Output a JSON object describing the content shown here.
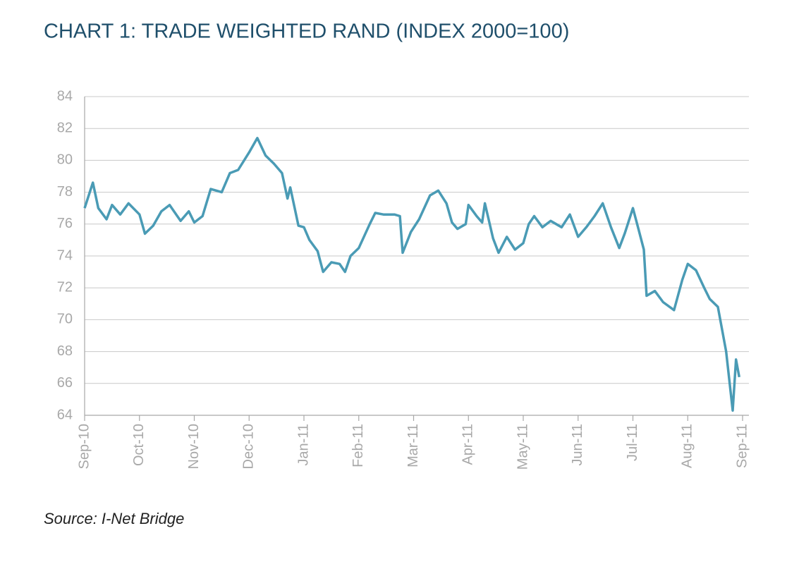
{
  "chart_data": {
    "type": "line",
    "title": "CHART 1: TRADE WEIGHTED RAND (INDEX 2000=100)",
    "source": "Source: I-Net Bridge",
    "color": "#4a9bb5",
    "grid": true,
    "x": [
      0,
      0.15,
      0.25,
      0.4,
      0.5,
      0.65,
      0.8,
      1.0,
      1.1,
      1.25,
      1.4,
      1.55,
      1.75,
      1.9,
      2.0,
      2.15,
      2.3,
      2.5,
      2.65,
      2.8,
      3.0,
      3.15,
      3.3,
      3.45,
      3.6,
      3.7,
      3.75,
      3.9,
      4.0,
      4.1,
      4.25,
      4.35,
      4.5,
      4.65,
      4.75,
      4.85,
      5.0,
      5.2,
      5.3,
      5.45,
      5.65,
      5.75,
      5.8,
      5.95,
      6.1,
      6.3,
      6.45,
      6.6,
      6.7,
      6.8,
      6.95,
      7.0,
      7.15,
      7.25,
      7.3,
      7.45,
      7.55,
      7.7,
      7.85,
      8.0,
      8.1,
      8.2,
      8.35,
      8.5,
      8.7,
      8.85,
      9.0,
      9.15,
      9.3,
      9.45,
      9.6,
      9.75,
      9.85,
      10.0,
      10.1,
      10.2,
      10.25,
      10.4,
      10.55,
      10.75,
      10.9,
      11.0,
      11.15,
      11.3,
      11.4,
      11.55,
      11.7,
      11.82,
      11.88,
      11.94
    ],
    "values": [
      77.0,
      78.6,
      77.0,
      76.3,
      77.2,
      76.6,
      77.3,
      76.6,
      75.4,
      75.9,
      76.8,
      77.2,
      76.2,
      76.8,
      76.1,
      76.5,
      78.2,
      78.0,
      79.2,
      79.4,
      80.5,
      81.4,
      80.3,
      79.8,
      79.2,
      77.6,
      78.3,
      75.9,
      75.8,
      75.0,
      74.3,
      73.0,
      73.6,
      73.5,
      73.0,
      74.0,
      74.5,
      76.0,
      76.7,
      76.6,
      76.6,
      76.5,
      74.2,
      75.5,
      76.3,
      77.8,
      78.1,
      77.3,
      76.1,
      75.7,
      76.0,
      77.2,
      76.5,
      76.1,
      77.3,
      75.1,
      74.2,
      75.2,
      74.4,
      74.8,
      76.0,
      76.5,
      75.8,
      76.2,
      75.8,
      76.6,
      75.2,
      75.8,
      76.5,
      77.3,
      75.8,
      74.5,
      75.4,
      77.0,
      75.7,
      74.4,
      71.5,
      71.8,
      71.1,
      70.6,
      72.5,
      73.5,
      73.1,
      72.0,
      71.3,
      70.8,
      68.0,
      64.3,
      67.5,
      66.4
    ],
    "xlim": [
      0,
      12
    ],
    "xticks": [
      {
        "value": 0,
        "label": "Sep-10"
      },
      {
        "value": 1,
        "label": "Oct-10"
      },
      {
        "value": 2,
        "label": "Nov-10"
      },
      {
        "value": 3,
        "label": "Dec-10"
      },
      {
        "value": 4,
        "label": "Jan-11"
      },
      {
        "value": 5,
        "label": "Feb-11"
      },
      {
        "value": 6,
        "label": "Mar-11"
      },
      {
        "value": 7,
        "label": "Apr-11"
      },
      {
        "value": 8,
        "label": "May-11"
      },
      {
        "value": 9,
        "label": "Jun-11"
      },
      {
        "value": 10,
        "label": "Jul-11"
      },
      {
        "value": 11,
        "label": "Aug-11"
      },
      {
        "value": 12,
        "label": "Sep-11"
      }
    ],
    "ylim": [
      64,
      84
    ],
    "yticks": [
      64,
      66,
      68,
      70,
      72,
      74,
      76,
      78,
      80,
      82,
      84
    ]
  }
}
